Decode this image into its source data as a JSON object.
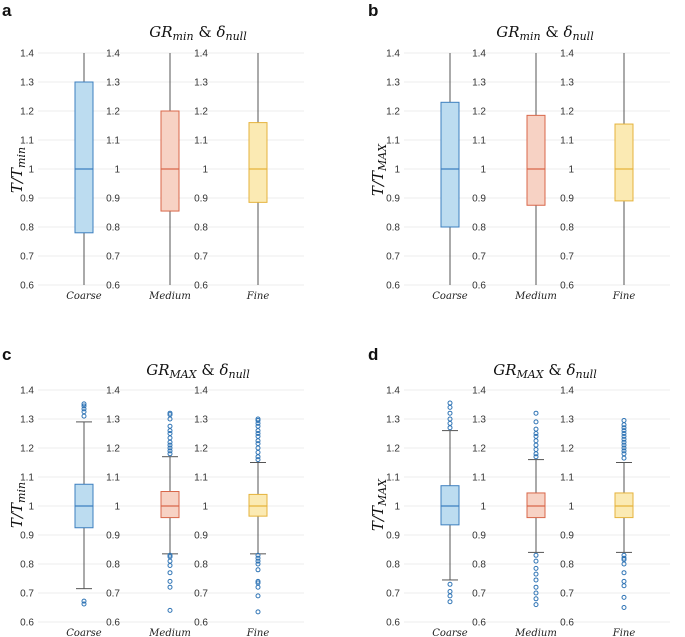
{
  "colors": {
    "coarse_fill": "#bcdcf0",
    "coarse_stroke": "#3d7fbf",
    "medium_fill": "#f7d2c4",
    "medium_stroke": "#d8674a",
    "fine_fill": "#fbeab3",
    "fine_stroke": "#e5b33c",
    "whisker": "#555555",
    "outlier": "#2f74b5"
  },
  "chart_data": [
    {
      "panel": "a",
      "type": "box",
      "title_main": "GR",
      "title_sub": "min",
      "title_amp": " & ",
      "title_delta": "δ",
      "title_delta_sub": "null",
      "ylabel_main": "T/T",
      "ylabel_sub": "min",
      "ylim": [
        0.6,
        1.4
      ],
      "yticks": [
        "0.6",
        "0.7",
        "0.8",
        "0.9",
        "1",
        "1.1",
        "1.2",
        "1.3",
        "1.4"
      ],
      "categories": [
        "Coarse",
        "Medium",
        "Fine"
      ],
      "boxes": [
        {
          "name": "Coarse",
          "whislo": 0.6,
          "q1": 0.78,
          "med": 1.0,
          "q3": 1.3,
          "whishi": 1.4,
          "fliers": []
        },
        {
          "name": "Medium",
          "whislo": 0.6,
          "q1": 0.855,
          "med": 1.0,
          "q3": 1.2,
          "whishi": 1.4,
          "fliers": []
        },
        {
          "name": "Fine",
          "whislo": 0.6,
          "q1": 0.885,
          "med": 1.0,
          "q3": 1.16,
          "whishi": 1.4,
          "fliers": []
        }
      ]
    },
    {
      "panel": "b",
      "type": "box",
      "title_main": "GR",
      "title_sub": "min",
      "title_amp": " & ",
      "title_delta": "δ",
      "title_delta_sub": "null",
      "ylabel_main": "T/T",
      "ylabel_sub": "MAX",
      "ylim": [
        0.6,
        1.4
      ],
      "yticks": [
        "0.6",
        "0.7",
        "0.8",
        "0.9",
        "1",
        "1.1",
        "1.2",
        "1.3",
        "1.4"
      ],
      "categories": [
        "Coarse",
        "Medium",
        "Fine"
      ],
      "boxes": [
        {
          "name": "Coarse",
          "whislo": 0.6,
          "q1": 0.8,
          "med": 1.0,
          "q3": 1.23,
          "whishi": 1.4,
          "fliers": []
        },
        {
          "name": "Medium",
          "whislo": 0.6,
          "q1": 0.875,
          "med": 1.0,
          "q3": 1.185,
          "whishi": 1.4,
          "fliers": []
        },
        {
          "name": "Fine",
          "whislo": 0.6,
          "q1": 0.89,
          "med": 1.0,
          "q3": 1.155,
          "whishi": 1.4,
          "fliers": []
        }
      ]
    },
    {
      "panel": "c",
      "type": "box",
      "title_main": "GR",
      "title_sub": "MAX",
      "title_amp": " & ",
      "title_delta": "δ",
      "title_delta_sub": "null",
      "ylabel_main": "T/T",
      "ylabel_sub": "min",
      "ylim": [
        0.6,
        1.4
      ],
      "yticks": [
        "0.6",
        "0.7",
        "0.8",
        "0.9",
        "1",
        "1.1",
        "1.2",
        "1.3",
        "1.4"
      ],
      "categories": [
        "Coarse",
        "Medium",
        "Fine"
      ],
      "boxes": [
        {
          "name": "Coarse",
          "whislo": 0.715,
          "q1": 0.925,
          "med": 1.0,
          "q3": 1.075,
          "whishi": 1.29,
          "fliers": [
            0.662,
            0.672,
            1.31,
            1.325,
            1.335,
            1.345,
            1.352
          ]
        },
        {
          "name": "Medium",
          "whislo": 0.835,
          "q1": 0.96,
          "med": 1.0,
          "q3": 1.05,
          "whishi": 1.17,
          "fliers": [
            0.64,
            0.72,
            0.74,
            0.77,
            0.795,
            0.81,
            0.825,
            0.83,
            1.18,
            1.19,
            1.2,
            1.21,
            1.22,
            1.235,
            1.25,
            1.26,
            1.275,
            1.3,
            1.315,
            1.32
          ]
        },
        {
          "name": "Fine",
          "whislo": 0.835,
          "q1": 0.965,
          "med": 1.0,
          "q3": 1.04,
          "whishi": 1.15,
          "fliers": [
            0.635,
            0.69,
            0.72,
            0.735,
            0.74,
            0.78,
            0.8,
            0.81,
            0.82,
            0.83,
            1.16,
            1.17,
            1.185,
            1.2,
            1.215,
            1.225,
            1.24,
            1.25,
            1.26,
            1.275,
            1.285,
            1.295,
            1.3
          ]
        }
      ]
    },
    {
      "panel": "d",
      "type": "box",
      "title_main": "GR",
      "title_sub": "MAX",
      "title_amp": " & ",
      "title_delta": "δ",
      "title_delta_sub": "null",
      "ylabel_main": "T/T",
      "ylabel_sub": "MAX",
      "ylim": [
        0.6,
        1.4
      ],
      "yticks": [
        "0.6",
        "0.7",
        "0.8",
        "0.9",
        "1",
        "1.1",
        "1.2",
        "1.3",
        "1.4"
      ],
      "categories": [
        "Coarse",
        "Medium",
        "Fine"
      ],
      "boxes": [
        {
          "name": "Coarse",
          "whislo": 0.745,
          "q1": 0.935,
          "med": 1.0,
          "q3": 1.07,
          "whishi": 1.26,
          "fliers": [
            0.67,
            0.69,
            0.705,
            0.73,
            1.27,
            1.285,
            1.3,
            1.32,
            1.34,
            1.355
          ]
        },
        {
          "name": "Medium",
          "whislo": 0.84,
          "q1": 0.96,
          "med": 1.0,
          "q3": 1.045,
          "whishi": 1.16,
          "fliers": [
            0.66,
            0.68,
            0.7,
            0.72,
            0.745,
            0.765,
            0.785,
            0.81,
            0.83,
            1.17,
            1.18,
            1.195,
            1.21,
            1.225,
            1.24,
            1.25,
            1.265,
            1.29,
            1.32
          ]
        },
        {
          "name": "Fine",
          "whislo": 0.84,
          "q1": 0.96,
          "med": 1.0,
          "q3": 1.045,
          "whishi": 1.15,
          "fliers": [
            0.65,
            0.685,
            0.725,
            0.74,
            0.77,
            0.8,
            0.815,
            0.82,
            0.83,
            1.165,
            1.18,
            1.19,
            1.2,
            1.21,
            1.22,
            1.23,
            1.24,
            1.25,
            1.26,
            1.27,
            1.28,
            1.295
          ]
        }
      ]
    }
  ]
}
